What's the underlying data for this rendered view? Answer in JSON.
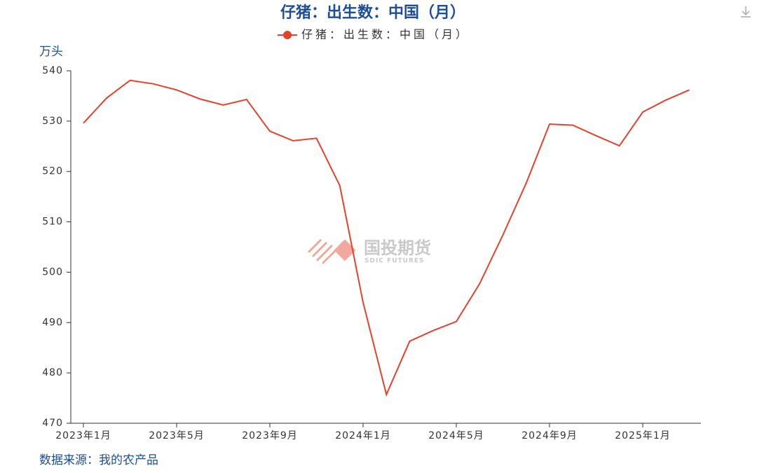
{
  "chart_data": {
    "type": "line",
    "title": "仔猪：出生数：中国（月）",
    "y_unit": "万头",
    "source": "数据来源：我的农产品",
    "watermark": "国投期货",
    "watermark_sub": "SDIC FUTURES",
    "categories": [
      "2023年1月",
      null,
      null,
      null,
      "2023年5月",
      null,
      null,
      null,
      "2023年9月",
      null,
      null,
      null,
      "2024年1月",
      null,
      null,
      null,
      "2024年5月",
      null,
      null,
      null,
      "2024年9月",
      null,
      null,
      null,
      "2025年1月",
      null,
      null
    ],
    "series": [
      {
        "name": "仔猪：出生数：中国（月）",
        "color": "#e5412b",
        "values": [
          529.6,
          534.6,
          538.1,
          537.4,
          536.2,
          534.4,
          533.2,
          534.3,
          528.0,
          526.1,
          526.6,
          517.2,
          494.0,
          475.7,
          486.3,
          488.4,
          490.2,
          497.7,
          507.4,
          517.7,
          529.4,
          529.2,
          527.1,
          525.1,
          531.8,
          534.2,
          536.2
        ]
      }
    ],
    "ylim": [
      470,
      540
    ],
    "yticks": [
      470,
      480,
      490,
      500,
      510,
      520,
      530,
      540
    ],
    "grid": false
  }
}
